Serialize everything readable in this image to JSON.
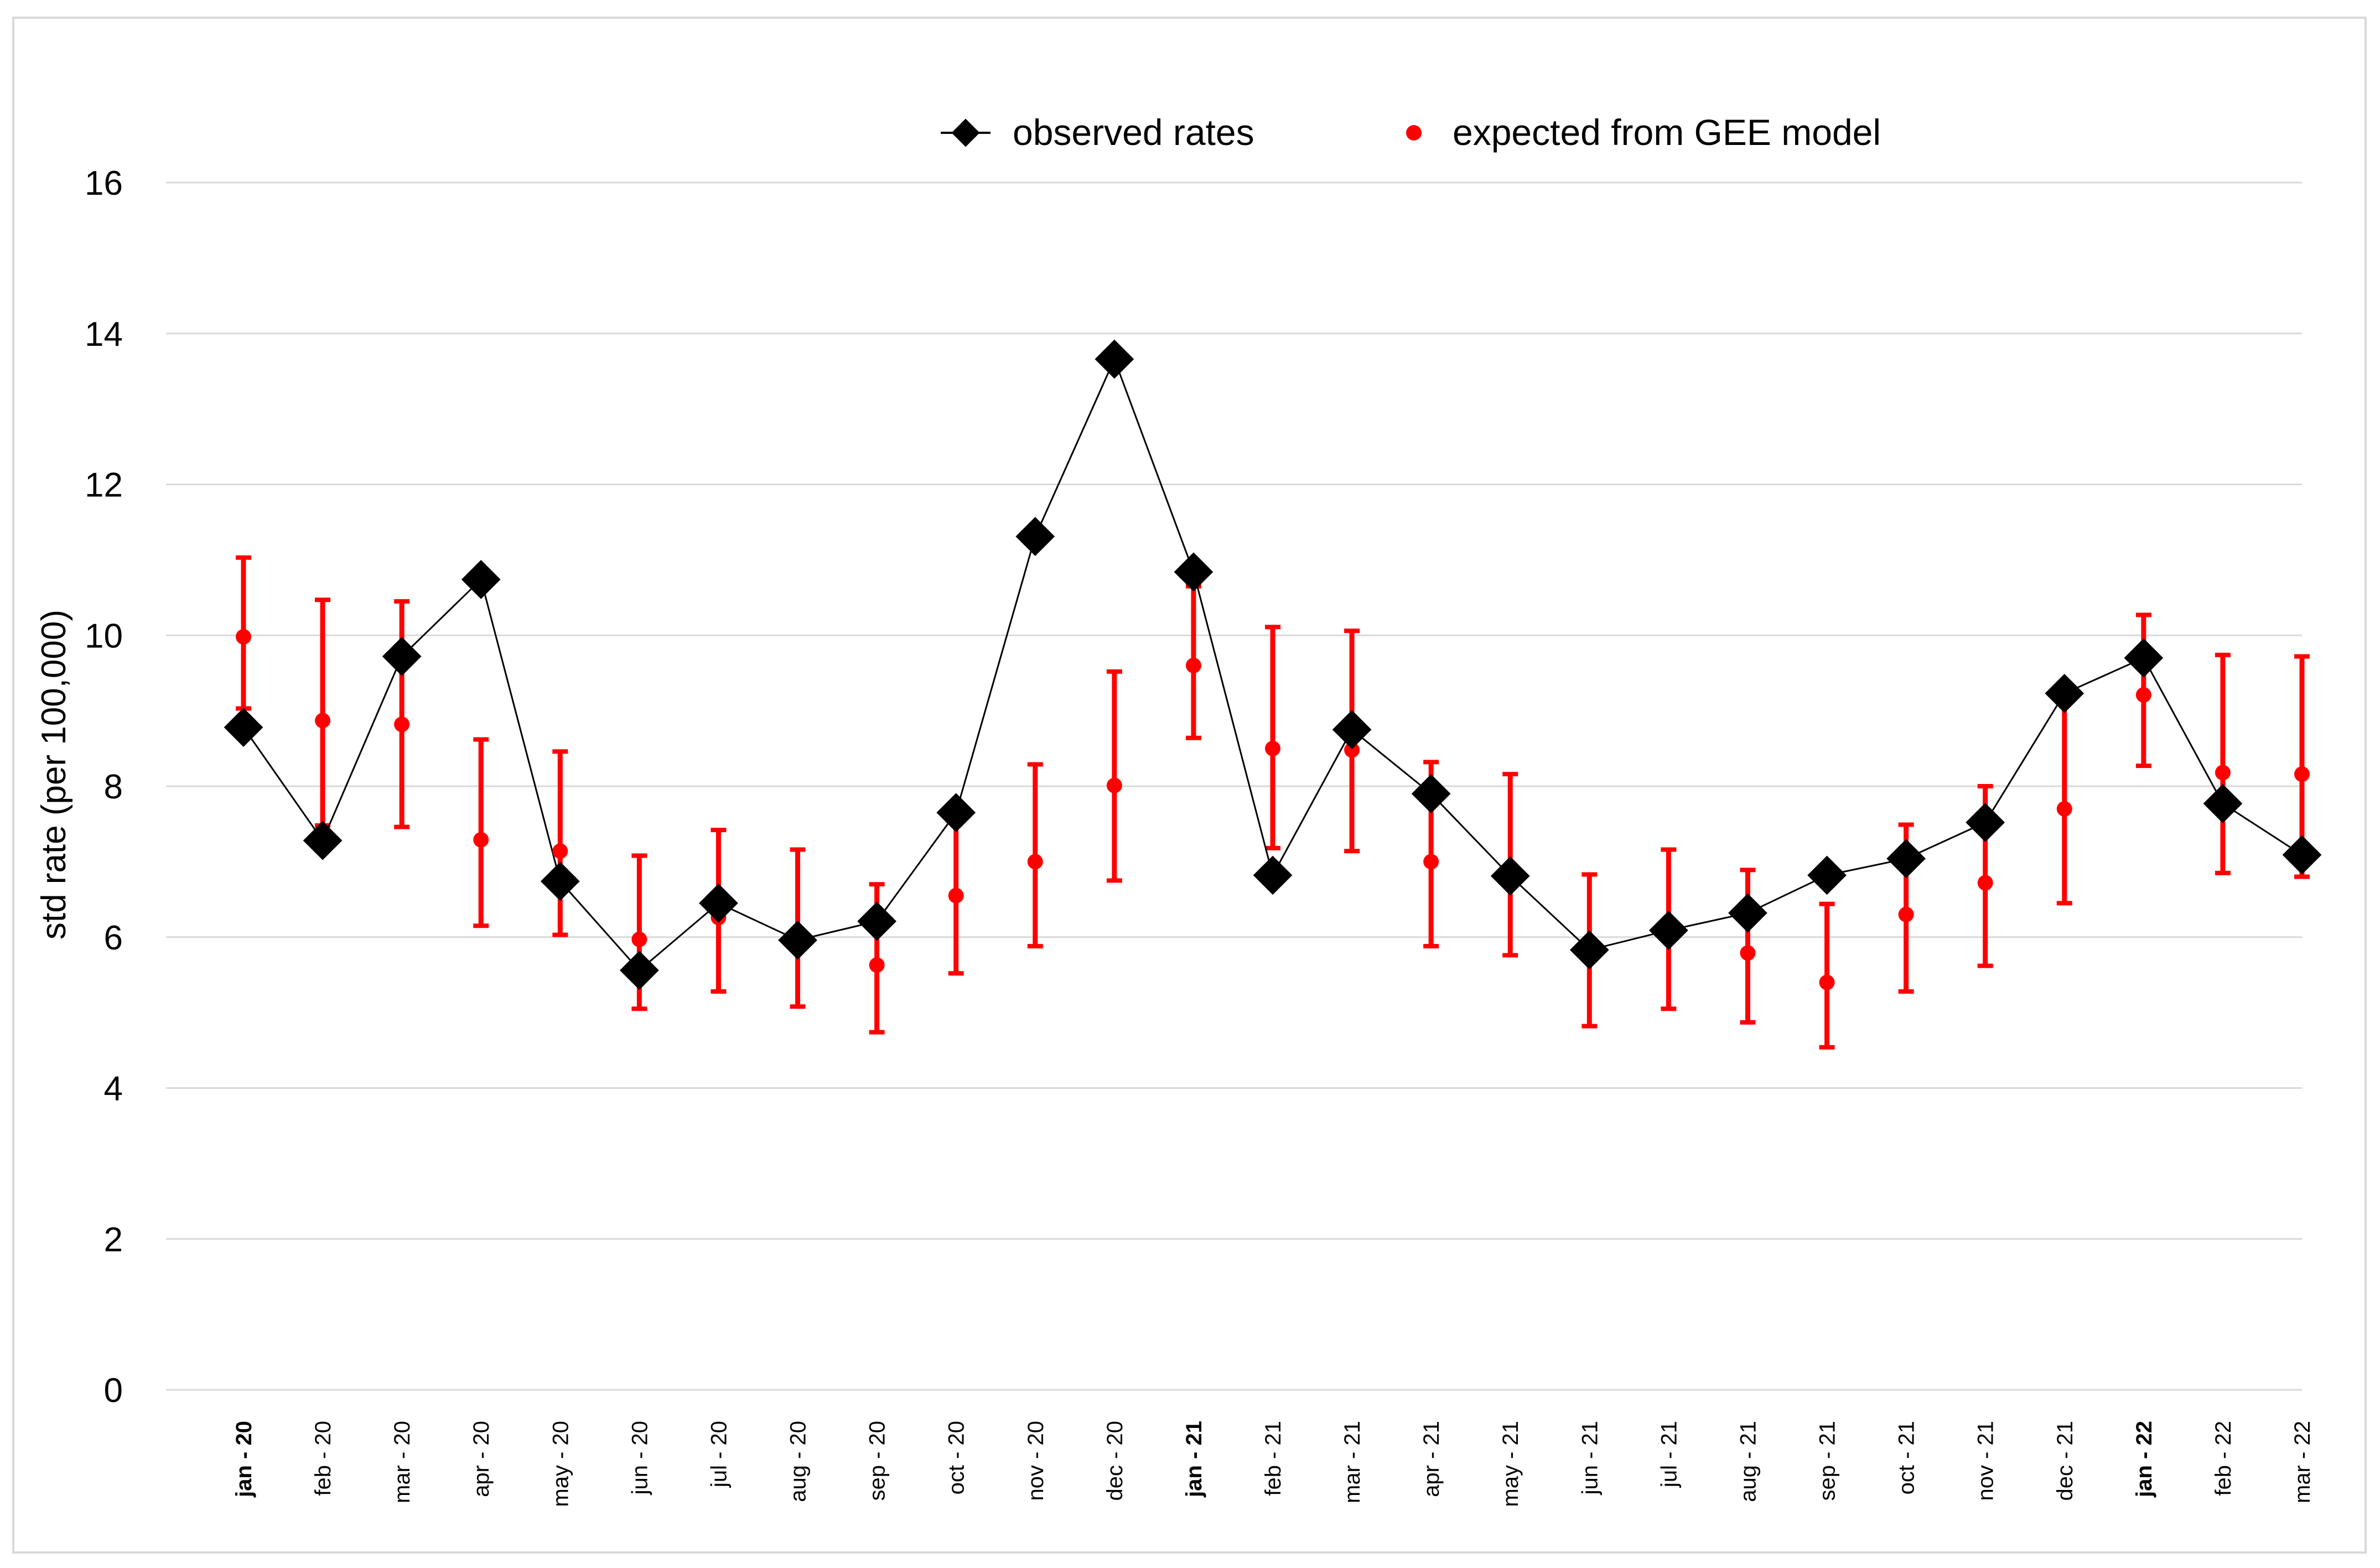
{
  "chart_data": {
    "type": "line",
    "title": "",
    "xlabel": "",
    "ylabel": "std rate (per 100,000)",
    "ylim": [
      0,
      16
    ],
    "yticks": [
      0,
      2,
      4,
      6,
      8,
      10,
      12,
      14,
      16
    ],
    "grid": true,
    "legend_position": "top-center",
    "categories": [
      "jan - 20",
      "feb - 20",
      "mar - 20",
      "apr - 20",
      "may - 20",
      "jun - 20",
      "jul - 20",
      "aug - 20",
      "sep - 20",
      "oct - 20",
      "nov - 20",
      "dec - 20",
      "jan - 21",
      "feb - 21",
      "mar - 21",
      "apr - 21",
      "may - 21",
      "jun - 21",
      "jul - 21",
      "aug - 21",
      "sep - 21",
      "oct - 21",
      "nov - 21",
      "dec - 21",
      "jan - 22",
      "feb - 22",
      "mar - 22"
    ],
    "bold_categories": [
      "jan - 20",
      "jan - 21",
      "jan - 22"
    ],
    "series": [
      {
        "name": "observed rates",
        "color": "#000000",
        "marker": "diamond",
        "line": true,
        "values": [
          8.78,
          7.28,
          9.72,
          10.74,
          6.74,
          5.56,
          6.45,
          5.96,
          6.21,
          7.65,
          11.31,
          13.66,
          10.84,
          6.82,
          8.75,
          7.9,
          6.81,
          5.83,
          6.09,
          6.32,
          6.82,
          7.04,
          7.52,
          9.23,
          9.7,
          7.77,
          7.09
        ]
      },
      {
        "name": "expected from GEE model",
        "color": "#ff0000",
        "marker": "circle",
        "line": false,
        "values": [
          9.98,
          8.87,
          8.82,
          7.29,
          7.14,
          5.97,
          6.26,
          6.04,
          5.63,
          6.55,
          7.0,
          8.01,
          9.6,
          8.5,
          8.48,
          7.0,
          6.88,
          5.72,
          6.03,
          5.79,
          5.4,
          6.3,
          6.72,
          7.7,
          9.21,
          8.18,
          8.16
        ],
        "lower": [
          9.03,
          7.48,
          7.46,
          6.15,
          6.03,
          5.05,
          5.28,
          5.08,
          4.74,
          5.52,
          5.88,
          6.75,
          8.64,
          7.18,
          7.14,
          5.88,
          5.76,
          4.82,
          5.05,
          4.87,
          4.54,
          5.28,
          5.62,
          6.45,
          8.27,
          6.85,
          6.8
        ],
        "upper": [
          11.03,
          10.47,
          10.45,
          8.62,
          8.46,
          7.08,
          7.42,
          7.16,
          6.7,
          7.78,
          8.29,
          9.52,
          10.65,
          10.11,
          10.06,
          8.32,
          8.16,
          6.83,
          7.16,
          6.89,
          6.44,
          7.49,
          8.0,
          9.22,
          10.27,
          9.74,
          9.72
        ]
      }
    ]
  }
}
